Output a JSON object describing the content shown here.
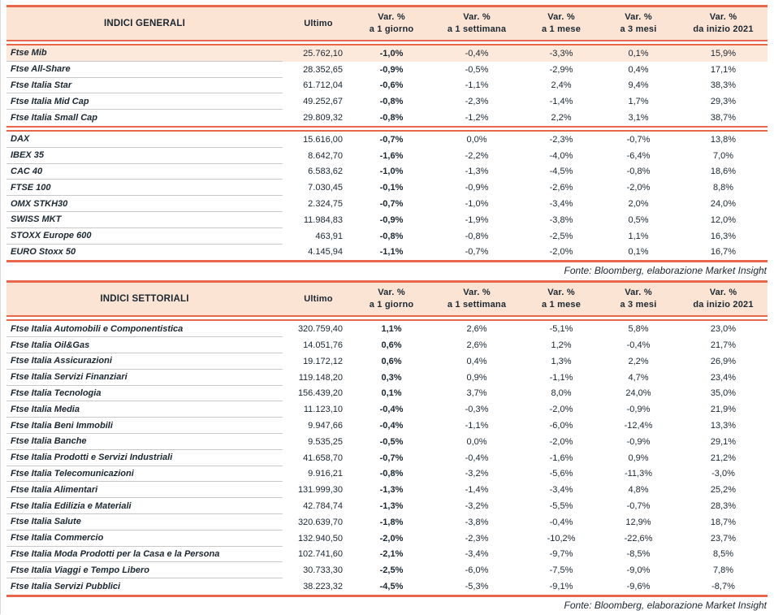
{
  "source_note": "Fonte: Bloomberg, elaborazione Market Insight",
  "colors": {
    "accent": "#e8664a",
    "header_bg": "#fbe4d3",
    "highlight_bg": "#fce9db",
    "text": "#1b2731",
    "row_line": "#c9c9c9"
  },
  "columns": {
    "ultimo": "Ultimo",
    "vars": [
      {
        "top": "Var. %",
        "bottom": "a 1 giorno"
      },
      {
        "top": "Var. %",
        "bottom": "a 1 settimana"
      },
      {
        "top": "Var. %",
        "bottom": "a 1 mese"
      },
      {
        "top": "Var. %",
        "bottom": "a 3 mesi"
      },
      {
        "top": "Var. %",
        "bottom": "da inizio 2021"
      }
    ]
  },
  "general": {
    "title": "INDICI GENERALI",
    "highlight_row_index": 0,
    "group_separator_after_index": 4,
    "rows": [
      {
        "name": "Ftse Mib",
        "ultimo": "25.762,10",
        "v1g": "-1,0%",
        "v1s": "-0,4%",
        "v1m": "-3,3%",
        "v3m": "0,1%",
        "ytd": "15,9%"
      },
      {
        "name": "Ftse All-Share",
        "ultimo": "28.352,65",
        "v1g": "-0,9%",
        "v1s": "-0,5%",
        "v1m": "-2,9%",
        "v3m": "0,4%",
        "ytd": "17,1%"
      },
      {
        "name": "Ftse Italia Star",
        "ultimo": "61.712,04",
        "v1g": "-0,6%",
        "v1s": "-1,1%",
        "v1m": "2,4%",
        "v3m": "9,4%",
        "ytd": "38,3%"
      },
      {
        "name": "Ftse Italia Mid Cap",
        "ultimo": "49.252,67",
        "v1g": "-0,8%",
        "v1s": "-2,3%",
        "v1m": "-1,4%",
        "v3m": "1,7%",
        "ytd": "29,3%"
      },
      {
        "name": "Ftse Italia Small Cap",
        "ultimo": "29.809,32",
        "v1g": "-0,8%",
        "v1s": "-1,2%",
        "v1m": "2,2%",
        "v3m": "3,1%",
        "ytd": "38,7%"
      },
      {
        "name": "DAX",
        "ultimo": "15.616,00",
        "v1g": "-0,7%",
        "v1s": "0,0%",
        "v1m": "-2,3%",
        "v3m": "-0,7%",
        "ytd": "13,8%"
      },
      {
        "name": "IBEX 35",
        "ultimo": "8.642,70",
        "v1g": "-1,6%",
        "v1s": "-2,2%",
        "v1m": "-4,0%",
        "v3m": "-6,4%",
        "ytd": "7,0%"
      },
      {
        "name": "CAC 40",
        "ultimo": "6.583,62",
        "v1g": "-1,0%",
        "v1s": "-1,3%",
        "v1m": "-4,5%",
        "v3m": "-0,8%",
        "ytd": "18,6%"
      },
      {
        "name": "FTSE 100",
        "ultimo": "7.030,45",
        "v1g": "-0,1%",
        "v1s": "-0,9%",
        "v1m": "-2,6%",
        "v3m": "-2,0%",
        "ytd": "8,8%"
      },
      {
        "name": "OMX STKH30",
        "ultimo": "2.324,75",
        "v1g": "-0,7%",
        "v1s": "-1,0%",
        "v1m": "-3,4%",
        "v3m": "2,0%",
        "ytd": "24,0%"
      },
      {
        "name": "SWISS MKT",
        "ultimo": "11.984,83",
        "v1g": "-0,9%",
        "v1s": "-1,9%",
        "v1m": "-3,8%",
        "v3m": "0,5%",
        "ytd": "12,0%"
      },
      {
        "name": "STOXX Europe 600",
        "ultimo": "463,91",
        "v1g": "-0,8%",
        "v1s": "-0,8%",
        "v1m": "-2,5%",
        "v3m": "1,1%",
        "ytd": "16,3%"
      },
      {
        "name": "EURO Stoxx 50",
        "ultimo": "4.145,94",
        "v1g": "-1,1%",
        "v1s": "-0,7%",
        "v1m": "-2,0%",
        "v3m": "0,1%",
        "ytd": "16,7%"
      }
    ]
  },
  "sector": {
    "title": "INDICI SETTORIALI",
    "highlight_row_index": -1,
    "group_separator_after_index": -1,
    "rows": [
      {
        "name": "Ftse Italia Automobili e Componentistica",
        "ultimo": "320.759,40",
        "v1g": "1,1%",
        "v1s": "2,6%",
        "v1m": "-5,1%",
        "v3m": "5,8%",
        "ytd": "23,0%"
      },
      {
        "name": "Ftse Italia Oil&Gas",
        "ultimo": "14.051,76",
        "v1g": "0,6%",
        "v1s": "2,6%",
        "v1m": "1,2%",
        "v3m": "-0,4%",
        "ytd": "21,7%"
      },
      {
        "name": "Ftse Italia Assicurazioni",
        "ultimo": "19.172,12",
        "v1g": "0,6%",
        "v1s": "0,4%",
        "v1m": "1,3%",
        "v3m": "2,2%",
        "ytd": "26,9%"
      },
      {
        "name": "Ftse Italia Servizi Finanziari",
        "ultimo": "119.148,20",
        "v1g": "0,3%",
        "v1s": "0,9%",
        "v1m": "-1,1%",
        "v3m": "4,7%",
        "ytd": "23,4%"
      },
      {
        "name": "Ftse Italia Tecnologia",
        "ultimo": "156.439,20",
        "v1g": "0,1%",
        "v1s": "3,7%",
        "v1m": "8,0%",
        "v3m": "24,0%",
        "ytd": "35,0%"
      },
      {
        "name": "Ftse Italia Media",
        "ultimo": "11.123,10",
        "v1g": "-0,4%",
        "v1s": "-0,3%",
        "v1m": "-2,0%",
        "v3m": "-0,9%",
        "ytd": "21,9%"
      },
      {
        "name": "Ftse Italia Beni Immobili",
        "ultimo": "9.947,66",
        "v1g": "-0,4%",
        "v1s": "-1,1%",
        "v1m": "-6,0%",
        "v3m": "-12,4%",
        "ytd": "13,3%"
      },
      {
        "name": "Ftse Italia Banche",
        "ultimo": "9.535,25",
        "v1g": "-0,5%",
        "v1s": "0,0%",
        "v1m": "-2,0%",
        "v3m": "-0,9%",
        "ytd": "29,1%"
      },
      {
        "name": "Ftse Italia Prodotti e Servizi Industriali",
        "ultimo": "41.658,70",
        "v1g": "-0,7%",
        "v1s": "-0,4%",
        "v1m": "-1,6%",
        "v3m": "0,9%",
        "ytd": "21,2%"
      },
      {
        "name": "Ftse Italia Telecomunicazioni",
        "ultimo": "9.916,21",
        "v1g": "-0,8%",
        "v1s": "-3,2%",
        "v1m": "-5,6%",
        "v3m": "-11,3%",
        "ytd": "-3,0%"
      },
      {
        "name": "Ftse Italia Alimentari",
        "ultimo": "131.999,30",
        "v1g": "-1,3%",
        "v1s": "-1,4%",
        "v1m": "-3,4%",
        "v3m": "4,8%",
        "ytd": "25,2%"
      },
      {
        "name": "Ftse Italia Edilizia e Materiali",
        "ultimo": "42.784,74",
        "v1g": "-1,3%",
        "v1s": "-3,2%",
        "v1m": "-5,5%",
        "v3m": "-0,7%",
        "ytd": "28,3%"
      },
      {
        "name": "Ftse Italia Salute",
        "ultimo": "320.639,70",
        "v1g": "-1,8%",
        "v1s": "-3,8%",
        "v1m": "-0,4%",
        "v3m": "12,9%",
        "ytd": "18,7%"
      },
      {
        "name": "Ftse Italia Commercio",
        "ultimo": "132.940,50",
        "v1g": "-2,0%",
        "v1s": "-2,3%",
        "v1m": "-10,2%",
        "v3m": "-22,6%",
        "ytd": "23,7%"
      },
      {
        "name": "Ftse Italia Moda Prodotti per la Casa e la Persona",
        "ultimo": "102.741,60",
        "v1g": "-2,1%",
        "v1s": "-3,4%",
        "v1m": "-9,7%",
        "v3m": "-8,5%",
        "ytd": "8,5%"
      },
      {
        "name": "Ftse Italia Viaggi e Tempo Libero",
        "ultimo": "30.733,30",
        "v1g": "-2,5%",
        "v1s": "-6,0%",
        "v1m": "-7,5%",
        "v3m": "-9,0%",
        "ytd": "7,8%"
      },
      {
        "name": "Ftse Italia Servizi Pubblici",
        "ultimo": "38.223,32",
        "v1g": "-4,5%",
        "v1s": "-5,3%",
        "v1m": "-9,1%",
        "v3m": "-9,6%",
        "ytd": "-8,7%"
      }
    ]
  }
}
